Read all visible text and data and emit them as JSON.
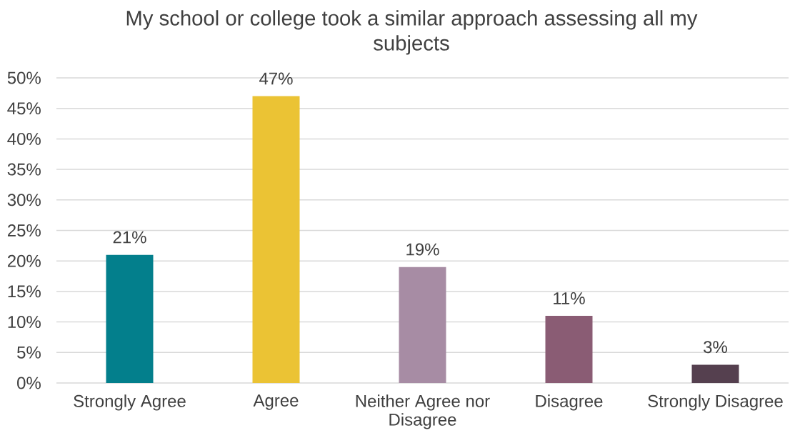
{
  "chart_data": {
    "type": "bar",
    "title": "My school or college took a similar approach assessing all my subjects",
    "categories": [
      "Strongly Agree",
      "Agree",
      "Neither Agree nor Disagree",
      "Disagree",
      "Strongly Disagree"
    ],
    "values": [
      21,
      47,
      19,
      11,
      3
    ],
    "value_labels": [
      "21%",
      "47%",
      "19%",
      "11%",
      "3%"
    ],
    "colors": [
      "#037f8c",
      "#ebc334",
      "#a78ca4",
      "#8a5c74",
      "#55404f"
    ],
    "ylim": [
      0,
      50
    ],
    "yticks": [
      {
        "value": 0,
        "label": "0%"
      },
      {
        "value": 5,
        "label": "5%"
      },
      {
        "value": 10,
        "label": "10%"
      },
      {
        "value": 15,
        "label": "15%"
      },
      {
        "value": 20,
        "label": "20%"
      },
      {
        "value": 25,
        "label": "25%"
      },
      {
        "value": 30,
        "label": "30%"
      },
      {
        "value": 35,
        "label": "35%"
      },
      {
        "value": 40,
        "label": "40%"
      },
      {
        "value": 45,
        "label": "45%"
      },
      {
        "value": 50,
        "label": "50%"
      }
    ],
    "grid": "y"
  }
}
